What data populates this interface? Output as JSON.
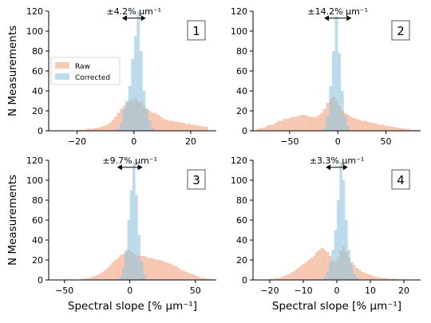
{
  "colors": {
    "raw": "#f4a582",
    "corrected": "#92c5de"
  },
  "legend": {
    "items": [
      {
        "label": "Raw",
        "series": "raw"
      },
      {
        "label": "Corrected",
        "series": "corrected"
      }
    ],
    "placement": "upper-left of panel 1"
  },
  "chart_data": [
    {
      "type": "histogram",
      "panel_label": "1",
      "annotation": "±4.2% µm⁻¹",
      "annotation_span": [
        -4.2,
        4.2
      ],
      "xlim": [
        -30,
        29
      ],
      "ylim": [
        0,
        120
      ],
      "xticks": [
        -20,
        0,
        20
      ],
      "yticks": [
        0,
        20,
        40,
        60,
        80,
        100,
        120
      ],
      "ylabel": "N Measurements",
      "xlabel": "",
      "grid": false,
      "bins": {
        "start": -20,
        "width": 1
      },
      "series": [
        {
          "name": "Raw",
          "values": [
            1,
            1,
            1,
            2,
            2,
            2,
            3,
            3,
            4,
            5,
            6,
            8,
            11,
            14,
            18,
            22,
            25,
            28,
            30,
            30,
            33,
            30,
            28,
            25,
            22,
            20,
            18,
            18,
            16,
            14,
            12,
            11,
            10,
            10,
            9,
            9,
            8,
            8,
            7,
            7,
            6,
            6,
            5,
            5,
            4,
            4
          ]
        },
        {
          "name": "Corrected",
          "values": [
            0,
            0,
            0,
            0,
            0,
            0,
            0,
            0,
            0,
            0,
            0,
            0,
            0,
            0,
            2,
            8,
            22,
            30,
            45,
            72,
            95,
            120,
            80,
            40,
            22,
            10,
            3,
            0
          ]
        }
      ]
    },
    {
      "type": "histogram",
      "panel_label": "2",
      "annotation": "±14.2% µm⁻¹",
      "annotation_span": [
        -14.2,
        14.2
      ],
      "xlim": [
        -88,
        86
      ],
      "ylim": [
        0,
        120
      ],
      "xticks": [
        -50,
        0,
        50
      ],
      "yticks": [
        0,
        20,
        40,
        60,
        80,
        100,
        120
      ],
      "ylabel": "",
      "xlabel": "",
      "grid": false,
      "bins": {
        "start": -84,
        "width": 3
      },
      "series": [
        {
          "name": "Raw",
          "values": [
            2,
            3,
            3,
            5,
            6,
            6,
            8,
            10,
            10,
            12,
            12,
            13,
            14,
            14,
            15,
            16,
            16,
            15,
            14,
            14,
            14,
            16,
            18,
            22,
            28,
            32,
            34,
            30,
            25,
            20,
            18,
            16,
            14,
            13,
            12,
            11,
            10,
            10,
            9,
            8,
            8,
            7,
            6,
            6,
            5,
            5,
            4,
            4,
            3,
            3,
            2,
            2,
            2,
            1,
            1,
            1
          ]
        },
        {
          "name": "Corrected",
          "values": [
            0,
            0,
            0,
            0,
            0,
            0,
            0,
            0,
            0,
            0,
            0,
            0,
            0,
            0,
            0,
            0,
            0,
            0,
            0,
            0,
            0,
            0,
            0,
            3,
            15,
            45,
            80,
            115,
            78,
            40,
            15,
            5,
            0
          ]
        }
      ]
    },
    {
      "type": "histogram",
      "panel_label": "3",
      "annotation": "±9.7% µm⁻¹",
      "annotation_span": [
        -9.7,
        9.7
      ],
      "xlim": [
        -62,
        66
      ],
      "ylim": [
        0,
        120
      ],
      "xticks": [
        -50,
        0,
        50
      ],
      "yticks": [
        0,
        20,
        40,
        60,
        80,
        100,
        120
      ],
      "ylabel": "N Measurements",
      "xlabel": "Spectral slope [% µm⁻¹]",
      "grid": false,
      "bins": {
        "start": -38,
        "width": 2
      },
      "series": [
        {
          "name": "Raw",
          "values": [
            1,
            1,
            2,
            2,
            3,
            4,
            5,
            6,
            8,
            10,
            12,
            15,
            18,
            20,
            22,
            25,
            26,
            28,
            30,
            28,
            26,
            25,
            24,
            24,
            24,
            23,
            22,
            22,
            21,
            20,
            20,
            19,
            18,
            17,
            16,
            15,
            14,
            12,
            10,
            9,
            8,
            7,
            6,
            5,
            4,
            3,
            2,
            2,
            1,
            1
          ]
        },
        {
          "name": "Corrected",
          "values": [
            0,
            0,
            0,
            0,
            0,
            0,
            0,
            0,
            0,
            0,
            0,
            0,
            0,
            0,
            0,
            3,
            12,
            30,
            60,
            90,
            118,
            85,
            45,
            18,
            5,
            0
          ]
        }
      ]
    },
    {
      "type": "histogram",
      "panel_label": "4",
      "annotation": "±3.3% µm⁻¹",
      "annotation_span": [
        -3.3,
        3.3
      ],
      "xlim": [
        -25,
        25
      ],
      "ylim": [
        0,
        120
      ],
      "xticks": [
        -20,
        -10,
        0,
        10,
        20
      ],
      "yticks": [
        0,
        20,
        40,
        60,
        80,
        100,
        120
      ],
      "ylabel": "",
      "xlabel": "Spectral slope [% µm⁻¹]",
      "grid": false,
      "bins": {
        "start": -20,
        "width": 0.8
      },
      "series": [
        {
          "name": "Raw",
          "values": [
            1,
            1,
            2,
            2,
            3,
            4,
            5,
            6,
            8,
            10,
            12,
            14,
            16,
            18,
            20,
            22,
            24,
            28,
            30,
            32,
            30,
            28,
            24,
            20,
            18,
            22,
            30,
            34,
            28,
            22,
            18,
            15,
            12,
            10,
            8,
            7,
            6,
            5,
            4,
            3,
            3,
            2,
            2,
            2,
            1,
            1,
            1,
            1
          ]
        },
        {
          "name": "Corrected",
          "values": [
            0,
            0,
            0,
            0,
            0,
            0,
            0,
            0,
            0,
            0,
            0,
            0,
            0,
            0,
            0,
            0,
            0,
            0,
            0,
            0,
            3,
            8,
            18,
            30,
            50,
            80,
            118,
            100,
            60,
            30,
            15,
            6,
            2,
            0
          ]
        }
      ]
    }
  ]
}
